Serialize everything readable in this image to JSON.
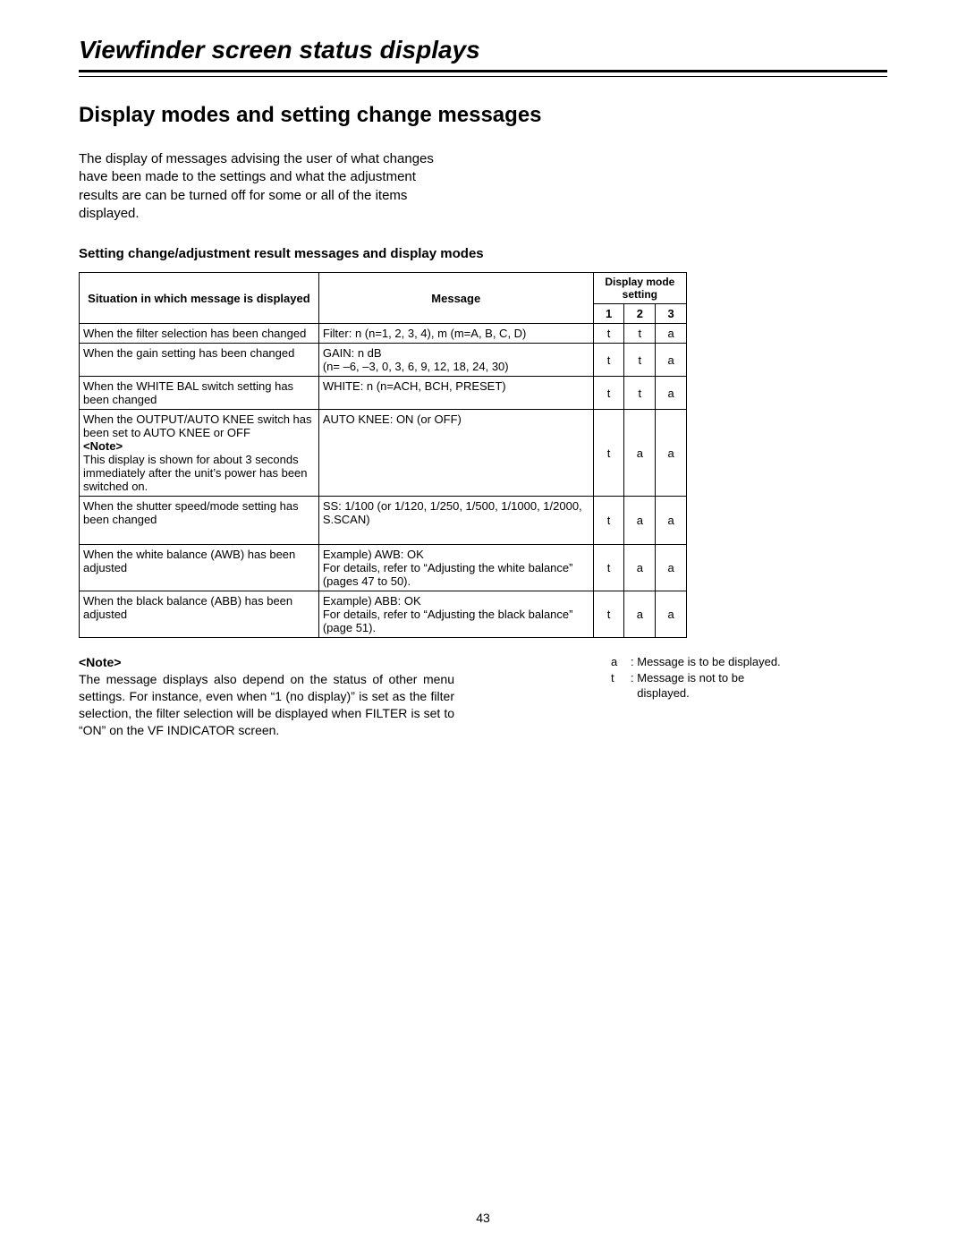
{
  "page_title": "Viewfinder screen status displays",
  "section_title": "Display modes and setting change messages",
  "intro": "The display of messages advising the user of what changes have been made to the settings and what the adjustment results are can be turned off for some or all of the items displayed.",
  "subhead": "Setting change/adjustment result messages and display modes",
  "symbols": {
    "yes": "a",
    "no": "t"
  },
  "table": {
    "headers": {
      "situation": "Situation in which message is displayed",
      "message": "Message",
      "mode_group": "Display mode setting",
      "mode1": "1",
      "mode2": "2",
      "mode3": "3"
    },
    "rows": [
      {
        "situation": "When the filter selection has been changed",
        "message": "Filter: n (n=1, 2, 3, 4), m (m=A, B, C, D)",
        "m1": "t",
        "m2": "t",
        "m3": "a"
      },
      {
        "situation": "When the gain setting has been changed",
        "message": "GAIN: n dB\n(n= –6, –3, 0, 3, 6, 9, 12, 18, 24, 30)",
        "m1": "t",
        "m2": "t",
        "m3": "a"
      },
      {
        "situation": "When the WHITE BAL switch setting has been changed",
        "message": "WHITE: n (n=ACH, BCH, PRESET)",
        "m1": "t",
        "m2": "t",
        "m3": "a"
      },
      {
        "situation_pre": "When the OUTPUT/AUTO KNEE switch has been set to AUTO KNEE or OFF",
        "situation_note_label": "<Note>",
        "situation_post": "This display is shown for about 3 seconds immediately after the unit’s power has been switched on.",
        "message": "AUTO KNEE: ON (or OFF)",
        "m1": "t",
        "m2": "a",
        "m3": "a",
        "has_note": true
      },
      {
        "situation": "When the shutter speed/mode setting has been changed",
        "message": "SS: 1/100 (or 1/120, 1/250, 1/500, 1/1000, 1/2000, S.SCAN)",
        "m1": "t",
        "m2": "a",
        "m3": "a",
        "pad_bottom": true
      },
      {
        "situation": "When the white balance (AWB) has been adjusted",
        "message": "Example) AWB: OK\nFor details, refer to “Adjusting the white balance” (pages 47 to 50).",
        "m1": "t",
        "m2": "a",
        "m3": "a"
      },
      {
        "situation": "When the black balance (ABB) has been adjusted",
        "message": "Example) ABB: OK\nFor details, refer to “Adjusting the black balance” (page 51).",
        "m1": "t",
        "m2": "a",
        "m3": "a"
      }
    ]
  },
  "note": {
    "label": "<Note>",
    "text": "The message displays also depend on the status of other menu settings.  For instance, even when “1 (no display)” is set as the filter selection, the filter selection will be displayed when FILTER is set to “ON” on the VF INDICATOR screen."
  },
  "legend": {
    "yes": "Message is to be displayed.",
    "no": "Message is not to be displayed."
  },
  "page_number": "43"
}
